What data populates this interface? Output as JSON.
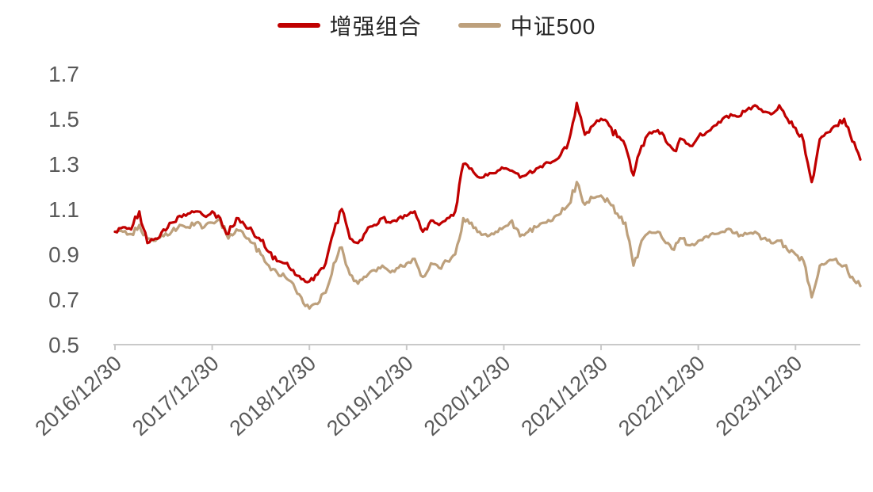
{
  "legend": {
    "items": [
      {
        "label": "增强组合",
        "color": "#C00000"
      },
      {
        "label": "中证500",
        "color": "#BDA07C"
      }
    ]
  },
  "chart_data": {
    "type": "line",
    "title": "",
    "x_unit": "months since 2016/12/30 (array index)",
    "x_tick_positions": [
      0,
      12,
      24,
      36,
      48,
      60,
      72,
      84
    ],
    "x_tick_labels": [
      "2016/12/30",
      "2017/12/30",
      "2018/12/30",
      "2019/12/30",
      "2020/12/30",
      "2021/12/30",
      "2022/12/30",
      "2023/12/30"
    ],
    "y_ticks": [
      0.5,
      0.7,
      0.9,
      1.1,
      1.3,
      1.5,
      1.7
    ],
    "ylim": [
      0.5,
      1.7
    ],
    "grid": false,
    "legend_position": "top-center",
    "series": [
      {
        "name": "增强组合",
        "color": "#C00000",
        "values": [
          1.0,
          1.02,
          1.01,
          1.09,
          0.95,
          0.97,
          1.01,
          1.04,
          1.07,
          1.08,
          1.09,
          1.07,
          1.09,
          1.06,
          0.99,
          1.06,
          1.03,
          1.0,
          0.96,
          0.91,
          0.87,
          0.86,
          0.83,
          0.79,
          0.78,
          0.81,
          0.86,
          1.0,
          1.1,
          0.97,
          0.95,
          1.0,
          1.03,
          1.06,
          1.04,
          1.06,
          1.07,
          1.09,
          1.0,
          1.05,
          1.03,
          1.06,
          1.09,
          1.3,
          1.28,
          1.24,
          1.25,
          1.26,
          1.28,
          1.27,
          1.24,
          1.26,
          1.28,
          1.3,
          1.31,
          1.34,
          1.4,
          1.57,
          1.43,
          1.47,
          1.5,
          1.47,
          1.42,
          1.38,
          1.25,
          1.38,
          1.44,
          1.45,
          1.4,
          1.36,
          1.41,
          1.38,
          1.42,
          1.44,
          1.47,
          1.5,
          1.52,
          1.51,
          1.54,
          1.56,
          1.53,
          1.52,
          1.56,
          1.5,
          1.46,
          1.4,
          1.22,
          1.41,
          1.44,
          1.47,
          1.5,
          1.4,
          1.32
        ]
      },
      {
        "name": "中证500",
        "color": "#BDA07C",
        "values": [
          1.0,
          1.0,
          0.99,
          1.03,
          0.97,
          0.96,
          0.98,
          1.0,
          1.03,
          1.02,
          1.04,
          1.02,
          1.04,
          1.05,
          0.97,
          1.01,
          0.98,
          0.95,
          0.9,
          0.85,
          0.82,
          0.8,
          0.77,
          0.71,
          0.66,
          0.68,
          0.73,
          0.86,
          0.93,
          0.81,
          0.77,
          0.8,
          0.83,
          0.85,
          0.82,
          0.84,
          0.86,
          0.88,
          0.8,
          0.86,
          0.84,
          0.87,
          0.9,
          1.06,
          1.04,
          1.0,
          0.98,
          1.0,
          1.02,
          1.05,
          0.98,
          1.0,
          1.02,
          1.04,
          1.05,
          1.08,
          1.12,
          1.22,
          1.12,
          1.15,
          1.16,
          1.13,
          1.08,
          1.04,
          0.85,
          0.96,
          1.0,
          1.0,
          0.95,
          0.92,
          0.97,
          0.94,
          0.96,
          0.98,
          0.99,
          1.0,
          1.01,
          0.98,
          0.99,
          1.0,
          0.97,
          0.95,
          0.96,
          0.92,
          0.9,
          0.87,
          0.71,
          0.85,
          0.87,
          0.88,
          0.85,
          0.8,
          0.76
        ]
      }
    ]
  }
}
